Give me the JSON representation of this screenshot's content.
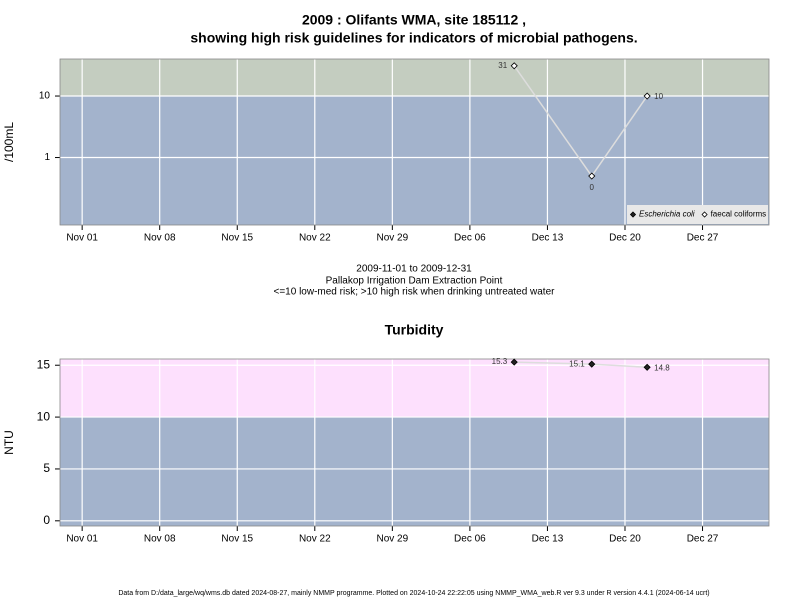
{
  "chart_data": [
    {
      "type": "line",
      "title": [
        "2009 : Olifants WMA, site 185112 ,",
        "showing high risk guidelines for indicators of microbial pathogens."
      ],
      "subtitle": [
        "2009-11-01 to 2009-12-31",
        "Pallakop Irrigation Dam Extraction Point",
        "<=10 low-med risk; >10 high risk when drinking untreated water"
      ],
      "ylabel": "/100mL",
      "log_scale": true,
      "x": [
        "2009-12-10",
        "2009-12-17",
        "2009-12-22"
      ],
      "xlim": [
        "2009-10-30",
        "2010-01-02"
      ],
      "xticks": [
        {
          "value": "2009-11-01",
          "label": "Nov 01"
        },
        {
          "value": "2009-11-08",
          "label": "Nov 08"
        },
        {
          "value": "2009-11-15",
          "label": "Nov 15"
        },
        {
          "value": "2009-11-22",
          "label": "Nov 22"
        },
        {
          "value": "2009-11-29",
          "label": "Nov 29"
        },
        {
          "value": "2009-12-06",
          "label": "Dec 06"
        },
        {
          "value": "2009-12-13",
          "label": "Dec 13"
        },
        {
          "value": "2009-12-20",
          "label": "Dec 20"
        },
        {
          "value": "2009-12-27",
          "label": "Dec 27"
        }
      ],
      "ylim": [
        0.08,
        40
      ],
      "yticks": [
        1,
        10
      ],
      "grid": true,
      "threshold": 10,
      "band_colors": {
        "low": "#a3b3cc",
        "high": "#c4cdc0"
      },
      "legend": "bottom-right",
      "series": [
        {
          "name": "Escherichia coli",
          "color": "#222222",
          "marker": "filled",
          "values": [
            null,
            null,
            null
          ]
        },
        {
          "name": "faecal coliforms",
          "color": "#ffffff",
          "marker": "open",
          "values": [
            31,
            0.5,
            10
          ],
          "value_labels": [
            "31",
            "0",
            "10"
          ]
        }
      ]
    },
    {
      "type": "line",
      "title": "Turbidity",
      "ylabel": "NTU",
      "log_scale": false,
      "x": [
        "2009-12-10",
        "2009-12-17",
        "2009-12-22"
      ],
      "xlim": [
        "2009-10-30",
        "2010-01-02"
      ],
      "xticks": [
        {
          "value": "2009-11-01",
          "label": "Nov 01"
        },
        {
          "value": "2009-11-08",
          "label": "Nov 08"
        },
        {
          "value": "2009-11-15",
          "label": "Nov 15"
        },
        {
          "value": "2009-11-22",
          "label": "Nov 22"
        },
        {
          "value": "2009-11-29",
          "label": "Nov 29"
        },
        {
          "value": "2009-12-06",
          "label": "Dec 06"
        },
        {
          "value": "2009-12-13",
          "label": "Dec 13"
        },
        {
          "value": "2009-12-20",
          "label": "Dec 20"
        },
        {
          "value": "2009-12-27",
          "label": "Dec 27"
        }
      ],
      "ylim": [
        -0.5,
        15.6
      ],
      "yticks": [
        0,
        5,
        10,
        15
      ],
      "grid": true,
      "threshold": 10,
      "band_colors": {
        "low": "#a3b3cc",
        "high": "#fde0fd"
      },
      "color": "#222222",
      "marker": "filled",
      "values": [
        15.3,
        15.1,
        14.8
      ]
    }
  ],
  "footer": "Data from D:/data_large/wq/wms.db dated 2024-08-27, mainly NMMP programme. Plotted on 2024-10-24 22:22:05 using NMMP_WMA_web.R ver 9.3 under R version 4.4.1 (2024-06-14 ucrt)"
}
